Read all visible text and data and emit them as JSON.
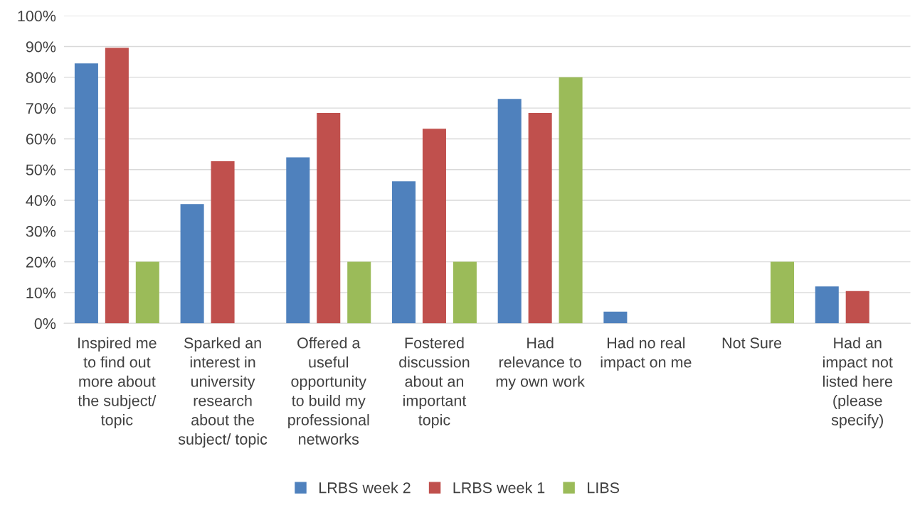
{
  "chart_data": {
    "type": "bar",
    "categories": [
      "Inspired me\nto find out\nmore about\nthe subject/\ntopic",
      "Sparked an\ninterest in\nuniversity\nresearch\nabout the\nsubject/ topic",
      "Offered a\nuseful\nopportunity\nto build my\nprofessional\nnetworks",
      "Fostered\ndiscussion\nabout an\nimportant\ntopic",
      "Had\nrelevance to\nmy own work",
      "Had no real\nimpact on me",
      "Not Sure",
      "Had an\nimpact not\nlisted here\n(please\nspecify)"
    ],
    "series": [
      {
        "name": "LRBS week 2",
        "color": "#4f81bd",
        "values": [
          84.5,
          38.8,
          54,
          46.2,
          73,
          3.8,
          0,
          12
        ]
      },
      {
        "name": "LRBS week 1",
        "color": "#c0504d",
        "values": [
          89.6,
          52.7,
          68.4,
          63.3,
          68.4,
          0,
          0,
          10.5
        ]
      },
      {
        "name": "LIBS",
        "color": "#9bbb59",
        "values": [
          20,
          0,
          20,
          20,
          80,
          0,
          20,
          0
        ]
      }
    ],
    "ylim": [
      0,
      100
    ],
    "yticks": [
      {
        "value": 0,
        "label": "0%"
      },
      {
        "value": 10,
        "label": "10%"
      },
      {
        "value": 20,
        "label": "20%"
      },
      {
        "value": 30,
        "label": "30%"
      },
      {
        "value": 40,
        "label": "40%"
      },
      {
        "value": 50,
        "label": "50%"
      },
      {
        "value": 60,
        "label": "60%"
      },
      {
        "value": 70,
        "label": "70%"
      },
      {
        "value": 80,
        "label": "80%"
      },
      {
        "value": 90,
        "label": "90%"
      },
      {
        "value": 100,
        "label": "100%"
      }
    ],
    "grid": "y",
    "legend": "bottom"
  }
}
